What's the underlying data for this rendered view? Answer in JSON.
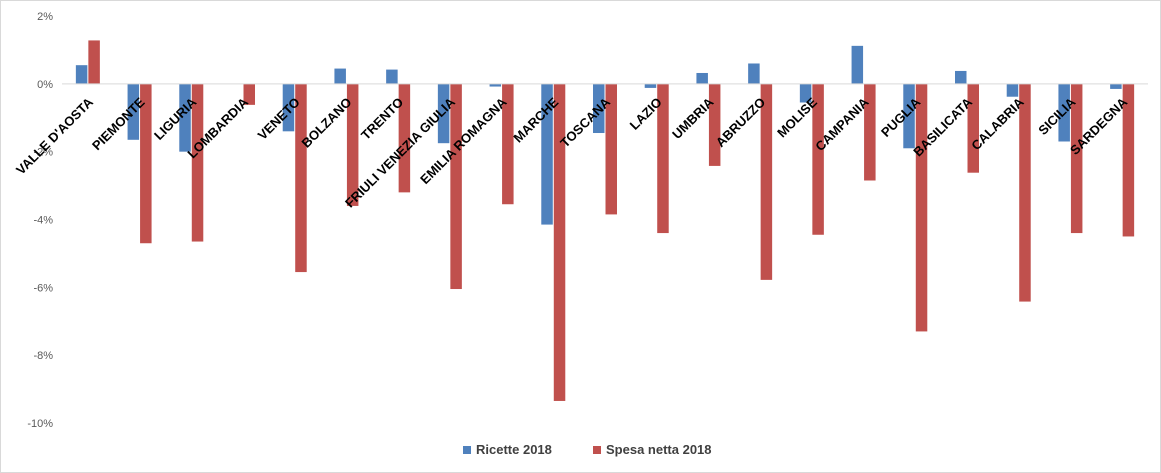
{
  "chart_data": {
    "type": "bar",
    "categories": [
      "VALLE D'AOSTA",
      "PIEMONTE",
      "LIGURIA",
      "LOMBARDIA",
      "VENETO",
      "BOLZANO",
      "TRENTO",
      "FRIULI VENEZIA GIULIA",
      "EMILIA ROMAGNA",
      "MARCHE",
      "TOSCANA",
      "LAZIO",
      "UMBRIA",
      "ABRUZZO",
      "MOLISE",
      "CAMPANIA",
      "PUGLIA",
      "BASILICATA",
      "CALABRIA",
      "SICILIA",
      "SARDEGNA"
    ],
    "series": [
      {
        "name": "Ricette 2018",
        "color": "#4f81bd",
        "values": [
          0.55,
          -1.65,
          -2.0,
          0.0,
          -1.4,
          0.45,
          0.42,
          -1.75,
          -0.08,
          -4.15,
          -1.45,
          -0.12,
          0.32,
          0.6,
          -0.55,
          1.12,
          -1.9,
          0.38,
          -0.38,
          -1.7,
          -0.15
        ]
      },
      {
        "name": "Spesa netta 2018",
        "color": "#c0504d",
        "values": [
          1.28,
          -4.7,
          -4.65,
          -0.62,
          -5.55,
          -3.6,
          -3.2,
          -6.05,
          -3.55,
          -9.35,
          -3.85,
          -4.4,
          -2.42,
          -5.78,
          -4.45,
          -2.85,
          -7.3,
          -2.62,
          -6.42,
          -4.4,
          -4.5
        ]
      }
    ],
    "yticks": [
      "2%",
      "0%",
      "-2%",
      "-4%",
      "-6%",
      "-8%",
      "-10%"
    ],
    "ylim": [
      -10,
      2
    ],
    "grid": false,
    "legend": "bottom-center",
    "title": "",
    "xlabel": "",
    "ylabel": ""
  }
}
